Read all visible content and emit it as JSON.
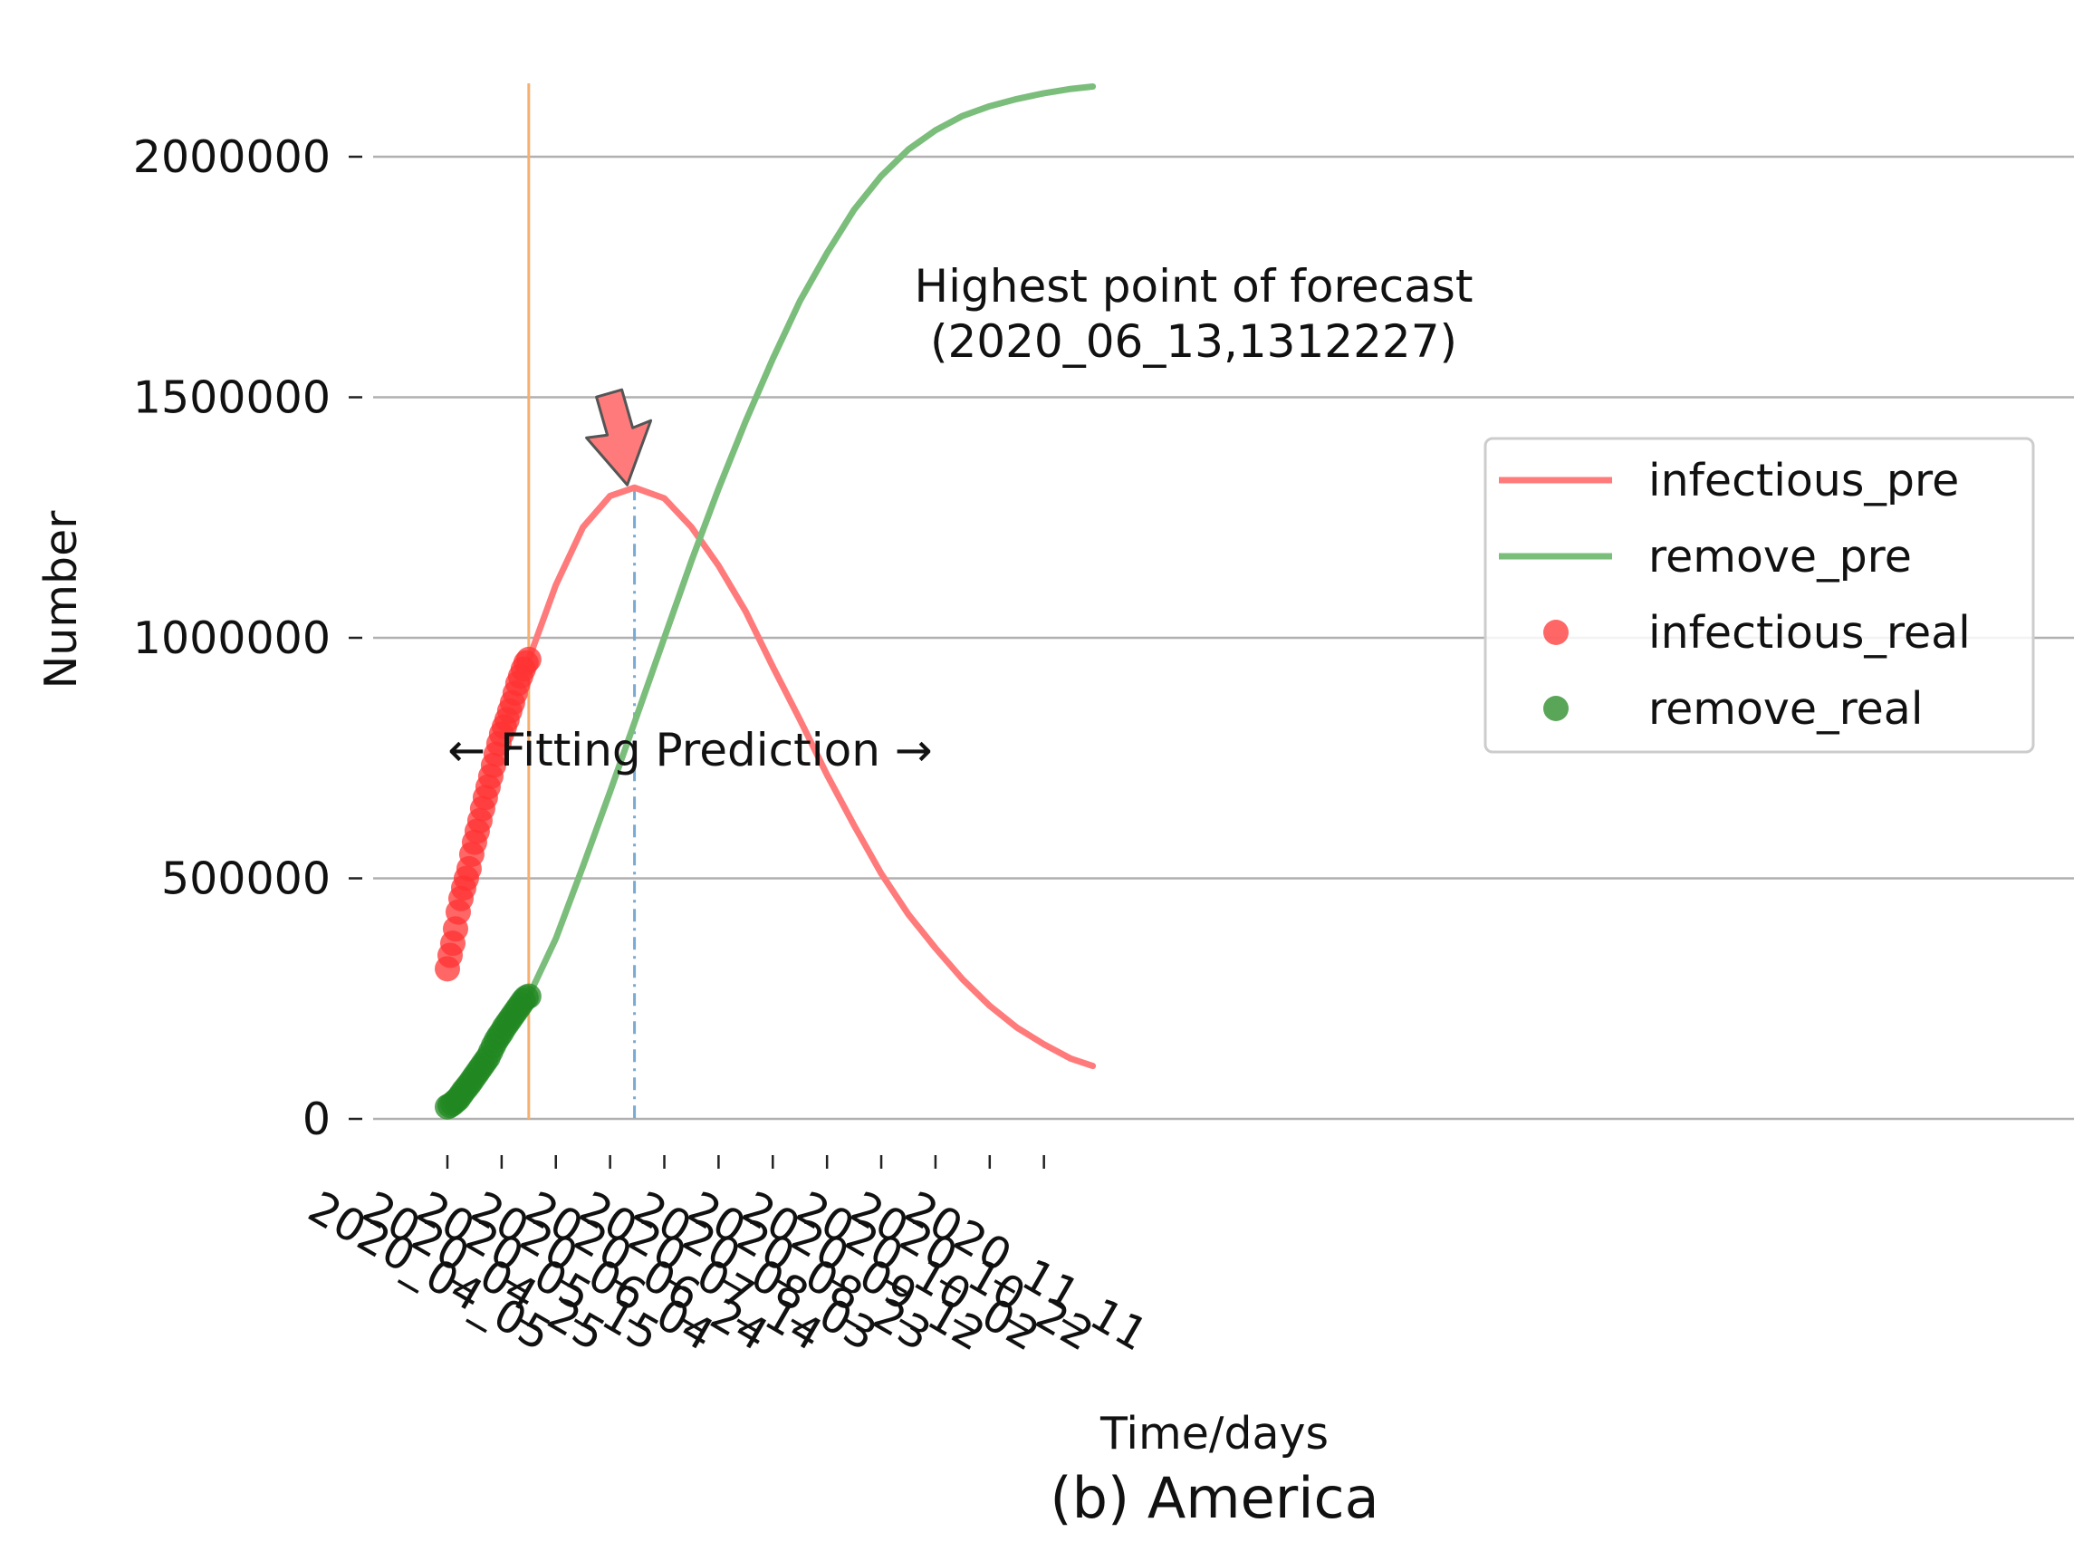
{
  "chart_data": {
    "type": "line",
    "caption": "(b) America",
    "xlabel": "Time/days",
    "ylabel": "Number",
    "ylim": [
      0,
      2150000
    ],
    "yticks": [
      0,
      500000,
      1000000,
      1500000,
      2000000
    ],
    "ytick_labels": [
      "0",
      "500000",
      "1000000",
      "1500000",
      "2000000"
    ],
    "xlim": [
      "2020-04-05",
      "2020-12-08"
    ],
    "xticks": [
      "2020-04-05",
      "2020-04-25",
      "2020-05-15",
      "2020-06-04",
      "2020-06-24",
      "2020-07-14",
      "2020-08-03",
      "2020-08-23",
      "2020-09-12",
      "2020-10-02",
      "2020-10-22",
      "2020-11-11"
    ],
    "xtick_labels": [
      "2020_04_05",
      "2020_04_25",
      "2020_05_15",
      "2020_06_04",
      "2020_06_24",
      "2020_07_14",
      "2020_08_03",
      "2020_08_23",
      "2020_09_12",
      "2020_10_02",
      "2020_10_22",
      "2020_11_11"
    ],
    "grid": "y",
    "legend_position": "right",
    "series": [
      {
        "name": "infectious_pre",
        "kind": "line",
        "color": "#ff7b7b",
        "x": [
          "2020-05-05",
          "2020-05-15",
          "2020-05-25",
          "2020-06-04",
          "2020-06-13",
          "2020-06-24",
          "2020-07-04",
          "2020-07-14",
          "2020-07-24",
          "2020-08-03",
          "2020-08-13",
          "2020-08-23",
          "2020-09-02",
          "2020-09-12",
          "2020-09-22",
          "2020-10-02",
          "2020-10-12",
          "2020-10-22",
          "2020-11-01",
          "2020-11-11",
          "2020-11-21",
          "2020-11-29"
        ],
        "y": [
          955000,
          1110000,
          1230000,
          1295000,
          1312227,
          1290000,
          1230000,
          1150000,
          1055000,
          940000,
          830000,
          715000,
          610000,
          510000,
          425000,
          355000,
          290000,
          235000,
          190000,
          155000,
          125000,
          110000
        ]
      },
      {
        "name": "remove_pre",
        "kind": "line",
        "color": "#7bbd7b",
        "x": [
          "2020-05-05",
          "2020-05-15",
          "2020-05-25",
          "2020-06-04",
          "2020-06-14",
          "2020-06-24",
          "2020-07-04",
          "2020-07-14",
          "2020-07-24",
          "2020-08-03",
          "2020-08-13",
          "2020-08-23",
          "2020-09-02",
          "2020-09-12",
          "2020-09-22",
          "2020-10-02",
          "2020-10-12",
          "2020-10-22",
          "2020-11-01",
          "2020-11-11",
          "2020-11-21",
          "2020-11-29"
        ],
        "y": [
          255000,
          375000,
          525000,
          680000,
          840000,
          1000000,
          1160000,
          1310000,
          1450000,
          1580000,
          1700000,
          1800000,
          1890000,
          1960000,
          2015000,
          2055000,
          2085000,
          2105000,
          2120000,
          2132000,
          2141000,
          2146000
        ]
      },
      {
        "name": "infectious_real",
        "kind": "scatter",
        "color": "#ff3333",
        "x": [
          "2020-04-05",
          "2020-04-06",
          "2020-04-07",
          "2020-04-08",
          "2020-04-09",
          "2020-04-10",
          "2020-04-11",
          "2020-04-12",
          "2020-04-13",
          "2020-04-14",
          "2020-04-15",
          "2020-04-16",
          "2020-04-17",
          "2020-04-18",
          "2020-04-19",
          "2020-04-20",
          "2020-04-21",
          "2020-04-22",
          "2020-04-23",
          "2020-04-24",
          "2020-04-25",
          "2020-04-26",
          "2020-04-27",
          "2020-04-28",
          "2020-04-29",
          "2020-04-30",
          "2020-05-01",
          "2020-05-02",
          "2020-05-03",
          "2020-05-04",
          "2020-05-05"
        ],
        "y": [
          312000,
          340000,
          365000,
          395000,
          430000,
          458000,
          480000,
          500000,
          520000,
          550000,
          575000,
          598000,
          620000,
          645000,
          668000,
          690000,
          712000,
          735000,
          758000,
          780000,
          800000,
          815000,
          830000,
          848000,
          865000,
          885000,
          905000,
          920000,
          935000,
          948000,
          955000
        ]
      },
      {
        "name": "remove_real",
        "kind": "scatter",
        "color": "#228822",
        "x": [
          "2020-04-05",
          "2020-04-06",
          "2020-04-07",
          "2020-04-08",
          "2020-04-09",
          "2020-04-10",
          "2020-04-11",
          "2020-04-12",
          "2020-04-13",
          "2020-04-14",
          "2020-04-15",
          "2020-04-16",
          "2020-04-17",
          "2020-04-18",
          "2020-04-19",
          "2020-04-20",
          "2020-04-21",
          "2020-04-22",
          "2020-04-23",
          "2020-04-24",
          "2020-04-25",
          "2020-04-26",
          "2020-04-27",
          "2020-04-28",
          "2020-04-29",
          "2020-04-30",
          "2020-05-01",
          "2020-05-02",
          "2020-05-03",
          "2020-05-04",
          "2020-05-05"
        ],
        "y": [
          25000,
          28000,
          32000,
          37000,
          42000,
          50000,
          58000,
          65000,
          72000,
          80000,
          88000,
          96000,
          104000,
          112000,
          120000,
          128000,
          140000,
          152000,
          163000,
          172000,
          180000,
          190000,
          198000,
          206000,
          214000,
          222000,
          230000,
          238000,
          246000,
          252000,
          255000
        ]
      }
    ],
    "annotations": {
      "split_line": {
        "x": "2020-05-05",
        "color": "#f5b070"
      },
      "peak_line": {
        "x": "2020-06-13",
        "y": 1312227,
        "color": "#7aaad2"
      },
      "fitting_prediction_label": "← Fitting Prediction →",
      "peak_label_line1": "Highest point of forecast",
      "peak_label_line2": "(2020_06_13,1312227)",
      "arrow_color": "#ff7b7b"
    }
  }
}
